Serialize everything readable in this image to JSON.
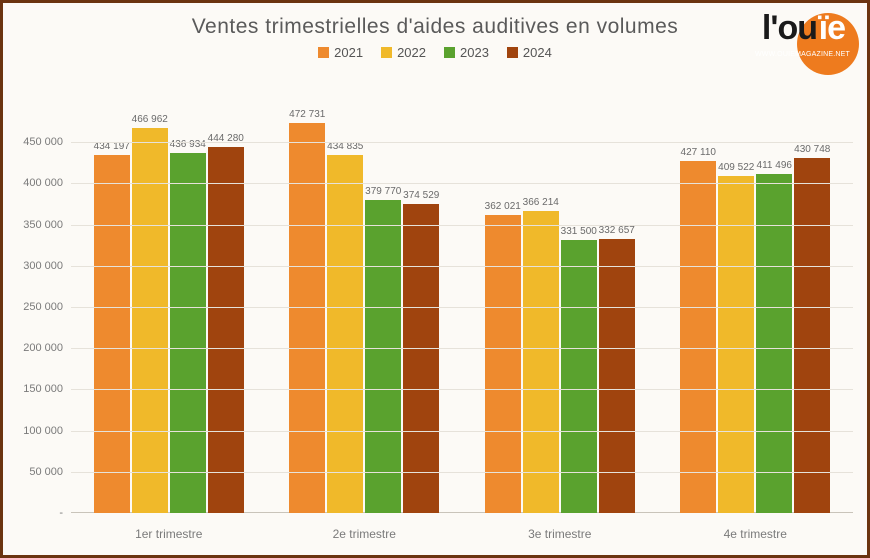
{
  "title": "Ventes trimestrielles d'aides auditives en volumes",
  "logo": {
    "prefix": "l'ou",
    "suffix": "ïe",
    "url": "WWW.OUIEMAGAZINE.NET"
  },
  "chart": {
    "type": "bar",
    "background_color": "#fcfaf6",
    "grid_color": "#e6e2da",
    "frame_color": "#6b3410",
    "ylim": [
      0,
      500000
    ],
    "ytick_step": 50000,
    "yticks": [
      "-",
      "50 000",
      "100 000",
      "150 000",
      "200 000",
      "250 000",
      "300 000",
      "350 000",
      "400 000",
      "450 000"
    ],
    "series": [
      {
        "name": "2021",
        "color": "#ee8a2e"
      },
      {
        "name": "2022",
        "color": "#f0b92a"
      },
      {
        "name": "2023",
        "color": "#5aa22e"
      },
      {
        "name": "2024",
        "color": "#a0440e"
      }
    ],
    "categories": [
      "1er trimestre",
      "2e trimestre",
      "3e trimestre",
      "4e trimestre"
    ],
    "data": [
      {
        "values": [
          434197,
          466962,
          436934,
          444280
        ],
        "labels": [
          "434 197",
          "466 962",
          "436 934",
          "444 280"
        ]
      },
      {
        "values": [
          472731,
          434835,
          379770,
          374529
        ],
        "labels": [
          "472 731",
          "434 835",
          "379 770",
          "374 529"
        ]
      },
      {
        "values": [
          362021,
          366214,
          331500,
          332657
        ],
        "labels": [
          "362 021",
          "366 214",
          "331 500",
          "332 657"
        ]
      },
      {
        "values": [
          427110,
          409522,
          411496,
          430748
        ],
        "labels": [
          "427 110",
          "409 522",
          "411 496",
          "430 748"
        ]
      }
    ]
  }
}
